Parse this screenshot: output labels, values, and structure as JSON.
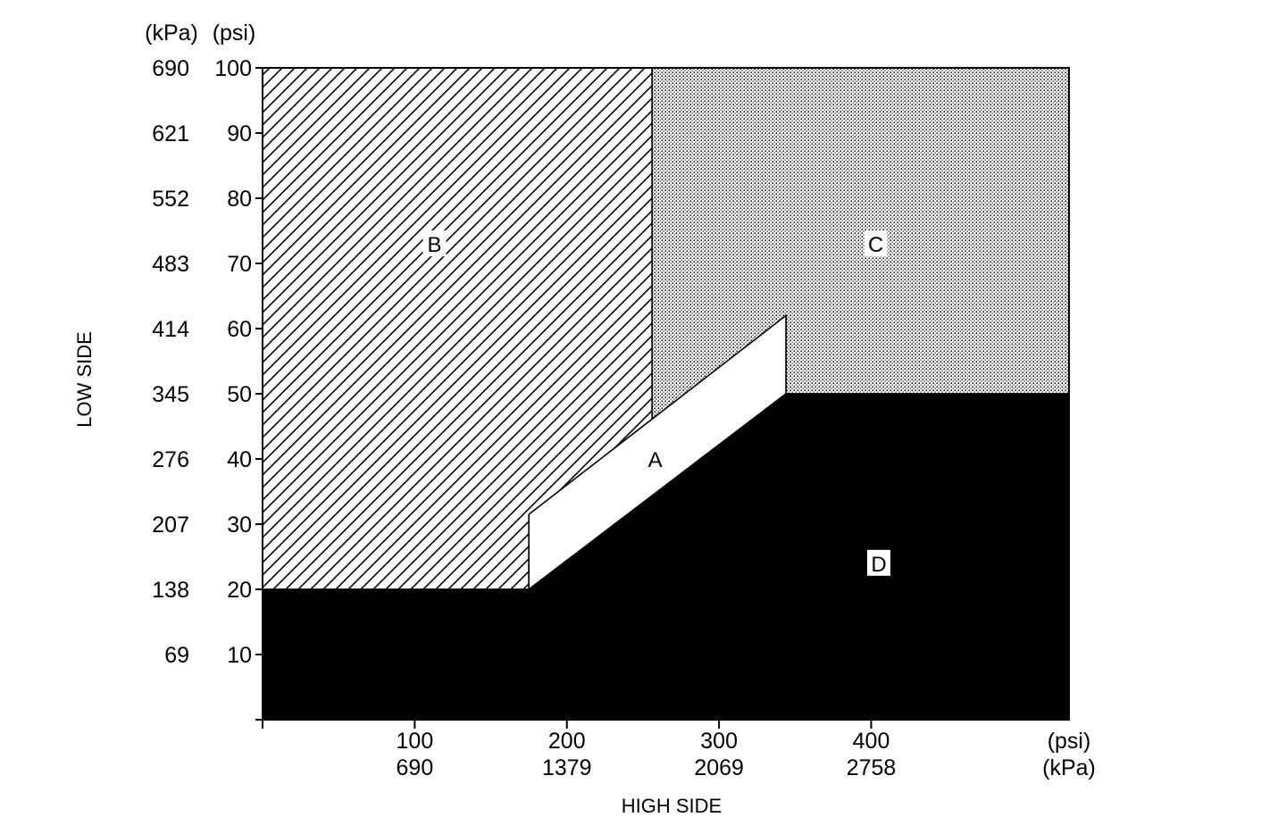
{
  "chart_data": {
    "type": "area",
    "title": "",
    "xlabel": "HIGH SIDE",
    "ylabel": "LOW SIDE",
    "x_units": [
      "(psi)",
      "(kPa)"
    ],
    "y_units": [
      "(kPa)",
      "(psi)"
    ],
    "xlim": [
      0,
      530
    ],
    "ylim": [
      0,
      100
    ],
    "x_ticks": [
      {
        "psi": 100,
        "kpa": "690"
      },
      {
        "psi": 200,
        "kpa": "1379"
      },
      {
        "psi": 300,
        "kpa": "2069"
      },
      {
        "psi": 400,
        "kpa": "2758"
      }
    ],
    "y_ticks": [
      {
        "psi": 10,
        "kpa": "69"
      },
      {
        "psi": 20,
        "kpa": "138"
      },
      {
        "psi": 30,
        "kpa": "207"
      },
      {
        "psi": 40,
        "kpa": "276"
      },
      {
        "psi": 50,
        "kpa": "345"
      },
      {
        "psi": 60,
        "kpa": "414"
      },
      {
        "psi": 70,
        "kpa": "483"
      },
      {
        "psi": 80,
        "kpa": "552"
      },
      {
        "psi": 90,
        "kpa": "621"
      },
      {
        "psi": 100,
        "kpa": "690"
      }
    ],
    "regions": [
      {
        "name": "B",
        "fill": "hatch",
        "polygon": [
          [
            0,
            100
          ],
          [
            256,
            100
          ],
          [
            256,
            46
          ],
          [
            175,
            27
          ],
          [
            175,
            20
          ],
          [
            0,
            20
          ]
        ],
        "label_at": [
          113,
          73
        ]
      },
      {
        "name": "C",
        "fill": "dots",
        "polygon": [
          [
            256,
            100
          ],
          [
            530,
            100
          ],
          [
            530,
            50
          ],
          [
            344,
            50
          ],
          [
            344,
            62
          ],
          [
            256,
            46
          ]
        ],
        "label_at": [
          403,
          73
        ]
      },
      {
        "name": "A",
        "fill": "white",
        "polygon": [
          [
            175,
            20
          ],
          [
            175,
            31.5
          ],
          [
            344,
            62
          ],
          [
            344,
            50
          ]
        ],
        "label_at": [
          258,
          40
        ]
      },
      {
        "name": "D",
        "fill": "solid",
        "polygon": [
          [
            0,
            0
          ],
          [
            530,
            0
          ],
          [
            530,
            50
          ],
          [
            344,
            50
          ],
          [
            175,
            20
          ],
          [
            0,
            20
          ]
        ],
        "label_at": [
          405,
          24
        ]
      }
    ]
  }
}
